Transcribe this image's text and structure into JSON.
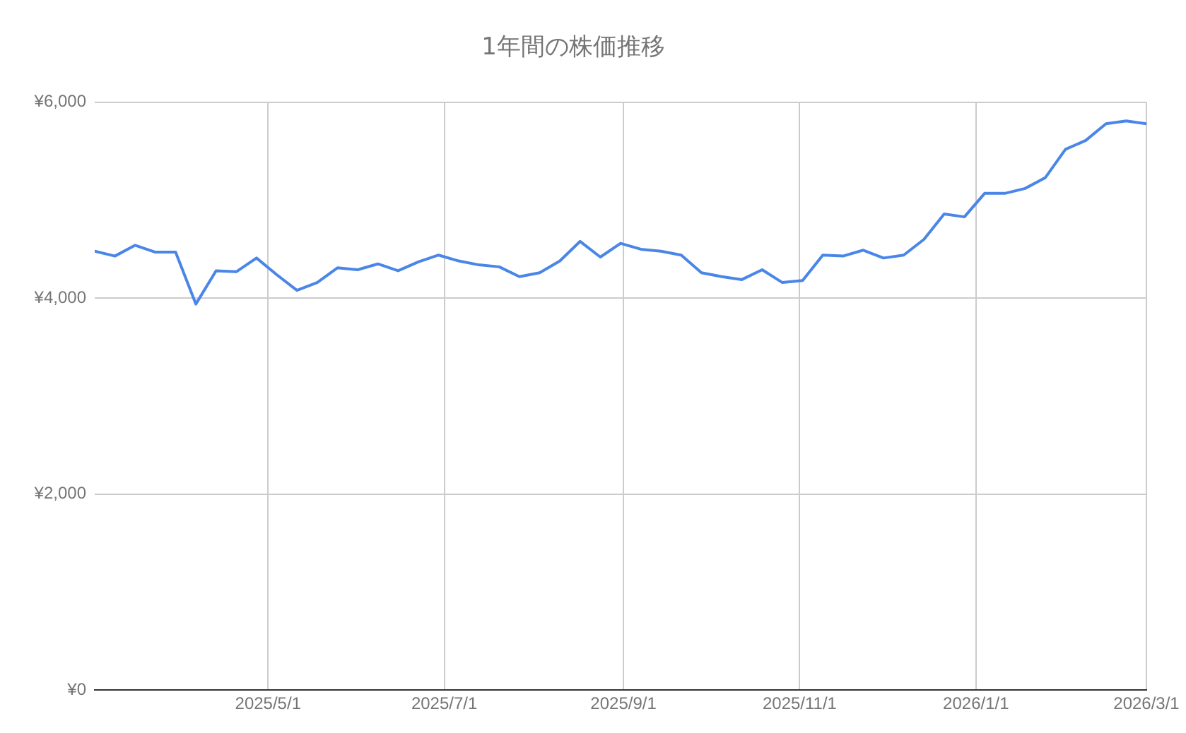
{
  "chart_data": {
    "type": "line",
    "title": "1年間の株価推移",
    "x": [
      "2025-03-02",
      "2025-03-09",
      "2025-03-16",
      "2025-03-23",
      "2025-03-30",
      "2025-04-06",
      "2025-04-13",
      "2025-04-20",
      "2025-04-27",
      "2025-05-04",
      "2025-05-11",
      "2025-05-18",
      "2025-05-25",
      "2025-06-01",
      "2025-06-08",
      "2025-06-15",
      "2025-06-22",
      "2025-06-29",
      "2025-07-06",
      "2025-07-13",
      "2025-07-20",
      "2025-07-27",
      "2025-08-03",
      "2025-08-10",
      "2025-08-17",
      "2025-08-24",
      "2025-08-31",
      "2025-09-07",
      "2025-09-14",
      "2025-09-21",
      "2025-09-28",
      "2025-10-05",
      "2025-10-12",
      "2025-10-19",
      "2025-10-26",
      "2025-11-02",
      "2025-11-09",
      "2025-11-16",
      "2025-11-23",
      "2025-11-30",
      "2025-12-07",
      "2025-12-14",
      "2025-12-21",
      "2025-12-28",
      "2026-01-04",
      "2026-01-11",
      "2026-01-18",
      "2026-01-25",
      "2026-02-01",
      "2026-02-08",
      "2026-02-15",
      "2026-02-22",
      "2026-03-01"
    ],
    "series": [
      {
        "color": "#4a86e8",
        "values": [
          4480,
          4430,
          4540,
          4470,
          4470,
          3940,
          4280,
          4270,
          4410,
          4240,
          4080,
          4160,
          4310,
          4290,
          4350,
          4280,
          4370,
          4440,
          4380,
          4340,
          4320,
          4220,
          4260,
          4380,
          4580,
          4420,
          4560,
          4500,
          4480,
          4440,
          4260,
          4220,
          4190,
          4290,
          4160,
          4180,
          4440,
          4430,
          4490,
          4410,
          4440,
          4600,
          4860,
          4830,
          5070,
          5070,
          5120,
          5230,
          5520,
          5610,
          5780,
          5810,
          5780
        ]
      }
    ],
    "xlim": [
      "2025-03-02",
      "2026-03-01"
    ],
    "xticks": [
      {
        "value": "2025-05-01",
        "label": "2025/5/1"
      },
      {
        "value": "2025-07-01",
        "label": "2025/7/1"
      },
      {
        "value": "2025-09-01",
        "label": "2025/9/1"
      },
      {
        "value": "2025-11-01",
        "label": "2025/11/1"
      },
      {
        "value": "2026-01-01",
        "label": "2026/1/1"
      },
      {
        "value": "2026-03-01",
        "label": "2026/3/1"
      }
    ],
    "ylim": [
      0,
      6000
    ],
    "yticks": [
      {
        "value": 0,
        "label": "¥0"
      },
      {
        "value": 2000,
        "label": "¥2,000"
      },
      {
        "value": 4000,
        "label": "¥4,000"
      },
      {
        "value": 6000,
        "label": "¥6,000"
      }
    ],
    "grid": true,
    "marker": "none",
    "line_style": "solid"
  }
}
